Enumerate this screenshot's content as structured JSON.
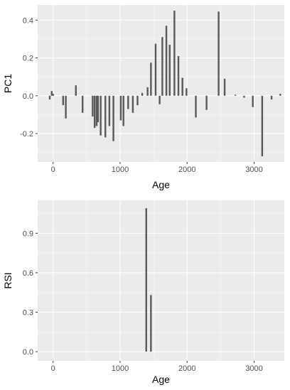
{
  "colors": {
    "panel_bg": "#EBEBEB",
    "grid_major": "#FFFFFF",
    "bar": "#595959",
    "tick_text": "#4D4D4D",
    "axis_title": "#000000"
  },
  "chart_data": [
    {
      "type": "bar",
      "title": "",
      "xlabel": "Age",
      "ylabel": "PC1",
      "xlim": [
        -230,
        3450
      ],
      "ylim": [
        -0.35,
        0.48
      ],
      "xticks": [
        0,
        1000,
        2000,
        3000
      ],
      "xtick_labels": [
        "0",
        "1000",
        "2000",
        "3000"
      ],
      "yticks": [
        -0.2,
        0.0,
        0.2,
        0.4
      ],
      "ytick_labels": [
        "-0.2",
        "0.0",
        "0.2",
        "0.4"
      ],
      "grid": true,
      "x": [
        -50,
        -20,
        0,
        150,
        190,
        340,
        440,
        590,
        620,
        650,
        670,
        710,
        780,
        840,
        900,
        1010,
        1050,
        1120,
        1190,
        1260,
        1330,
        1410,
        1460,
        1530,
        1590,
        1630,
        1690,
        1740,
        1810,
        1870,
        1930,
        1990,
        2130,
        2290,
        2470,
        2560,
        2720,
        2850,
        2980,
        3120,
        3260,
        3390
      ],
      "values": [
        -0.02,
        0.025,
        0.01,
        -0.05,
        -0.12,
        0.055,
        -0.09,
        -0.11,
        -0.17,
        -0.16,
        -0.14,
        -0.21,
        -0.22,
        -0.16,
        -0.24,
        -0.13,
        -0.16,
        -0.07,
        -0.09,
        -0.05,
        0.015,
        0.045,
        0.175,
        0.275,
        -0.045,
        0.31,
        0.37,
        0.27,
        0.45,
        0.21,
        0.095,
        0.04,
        -0.115,
        -0.075,
        0.445,
        0.09,
        0.005,
        -0.01,
        -0.06,
        -0.32,
        -0.02,
        0.01
      ]
    },
    {
      "type": "bar",
      "title": "",
      "xlabel": "Age",
      "ylabel": "RSI",
      "xlim": [
        -230,
        3450
      ],
      "ylim": [
        -0.07,
        1.15
      ],
      "xticks": [
        0,
        1000,
        2000,
        3000
      ],
      "xtick_labels": [
        "0",
        "1000",
        "2000",
        "3000"
      ],
      "yticks": [
        0.0,
        0.3,
        0.6,
        0.9
      ],
      "ytick_labels": [
        "0.0",
        "0.3",
        "0.6",
        "0.9"
      ],
      "grid": true,
      "x": [
        1390,
        1460
      ],
      "values": [
        1.09,
        0.43
      ]
    }
  ]
}
